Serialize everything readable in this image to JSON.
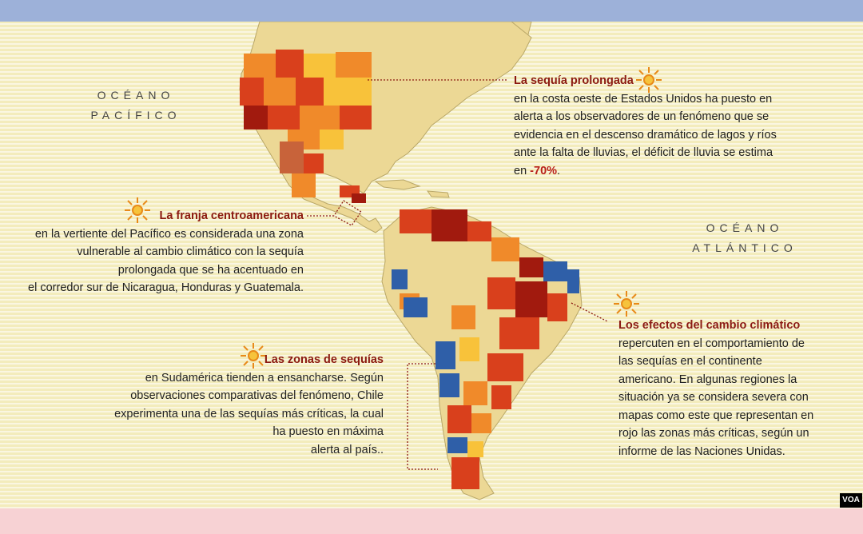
{
  "oceans": {
    "pacific": [
      "OCÉANO",
      "PACÍFICO"
    ],
    "atlantic": [
      "OCÉANO",
      "ATLÁNTICO"
    ]
  },
  "callouts": {
    "west_coast": {
      "title": "La sequía prolongada",
      "lines": [
        "en la costa oeste de Estados Unidos ha puesto en",
        "alerta a los observadores de un fenómeno que se",
        "evidencia en el descenso dramático de lagos y ríos",
        "ante la falta de lluvias, el déficit de lluvia se estima"
      ],
      "last_prefix": "en ",
      "value": "-70%",
      "last_suffix": "."
    },
    "central_america": {
      "title": "La franja  centroamericana",
      "lines": [
        "en la vertiente del Pacífico es considerada una zona",
        "vulnerable al cambio climático con la sequía",
        "prolongada que se ha acentuado en",
        "el corredor sur de Nicaragua, Honduras y Guatemala."
      ]
    },
    "south_america": {
      "title": "Las zonas de sequías",
      "lines": [
        "en Sudamérica tienden a ensancharse. Según",
        "observaciones comparativas del fenómeno, Chile",
        "experimenta una de las sequías más críticas, la cual",
        "ha puesto en máxima",
        "alerta al país.."
      ]
    },
    "climate_effects": {
      "title": "Los efectos del cambio climático",
      "lines": [
        "repercuten en el comportamiento de",
        "las sequías en el continente",
        "americano. En algunas regiones la",
        "situación ya se considera severa con",
        "mapas como este que representan en",
        "rojo las zonas más críticas, según un",
        "informe de las Naciones Unidas."
      ]
    }
  },
  "source_badge": "VOA",
  "colors": {
    "land": "#ecd895",
    "severe": "#a11a0e",
    "high": "#d9401c",
    "moderate": "#f08a2a",
    "low": "#f8c23a",
    "wet": "#2f5fa8",
    "title_red": "#8b1a12"
  }
}
